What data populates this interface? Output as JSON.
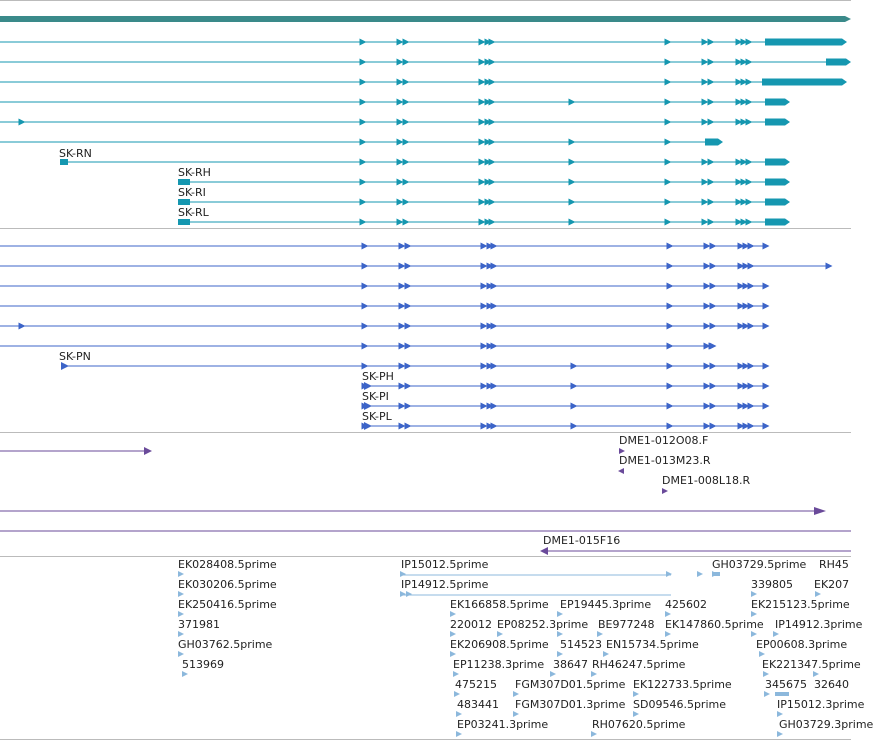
{
  "colors": {
    "transcript": "#1597b0",
    "polypeptide": "#3c64c8",
    "clone": "#6a4a9a",
    "est": "#8cb8dc",
    "gene_bar": "#3a8a8a",
    "divider": "#bbbbbb",
    "text": "#222222"
  },
  "transcript_labels": [
    "SK-RN",
    "SK-RH",
    "SK-RI",
    "SK-RL"
  ],
  "polypeptide_labels": [
    "SK-PN",
    "SK-PH",
    "SK-PI",
    "SK-PL"
  ],
  "clone_labels": [
    "DME1-012O08.F",
    "DME1-013M23.R",
    "DME1-008L18.R",
    "DME1-015F16"
  ],
  "est_labels": [
    "EK028408.5prime",
    "EK030206.5prime",
    "EK250416.5prime",
    "371981",
    "GH03762.5prime",
    "513969",
    "IP15012.5prime",
    "IP14912.5prime",
    "GH03729.5prime",
    "RH45",
    "339805",
    "EK207",
    "EK166858.5prime",
    "EP19445.3prime",
    "425602",
    "EK215123.5prime",
    "220012",
    "EP08252.3prime",
    "BE977248",
    "EK147860.5prime",
    "IP14912.3prime",
    "EK206908.5prime",
    "514523",
    "EN15734.5prime",
    "EP00608.3prime",
    "EP11238.3prime",
    "38647",
    "RH46247.5prime",
    "EK221347.5prime",
    "475215",
    "FGM307D01.5prime",
    "EK122733.5prime",
    "345675",
    "32640",
    "483441",
    "FGM307D01.3prime",
    "SD09546.5prime",
    "IP15012.3prime",
    "EP03241.3prime",
    "RH07620.5prime",
    "GH03729.3prime"
  ]
}
